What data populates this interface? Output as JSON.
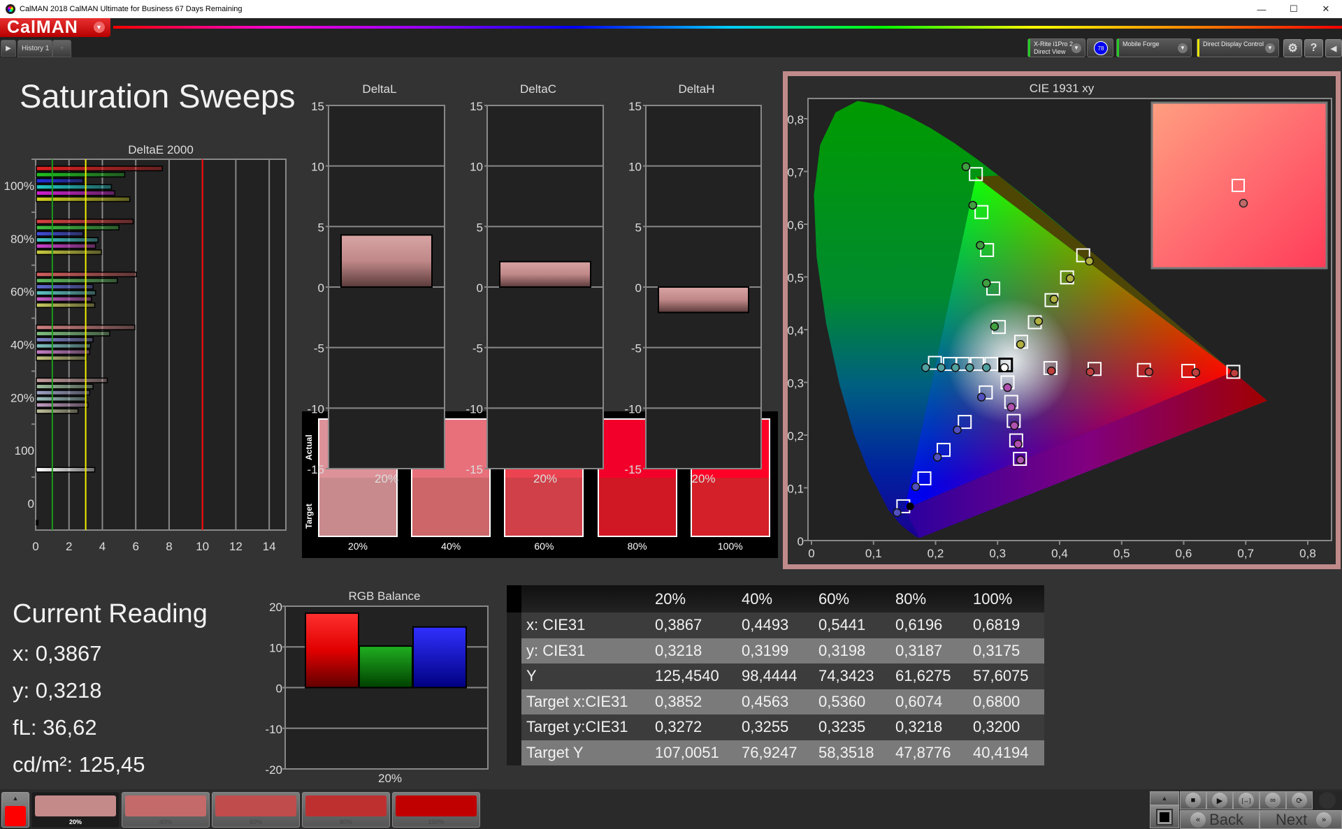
{
  "window": {
    "title": "CalMAN 2018 CalMAN Ultimate for Business 67 Days Remaining",
    "controls": [
      "minimize-icon",
      "maximize-icon",
      "close-icon"
    ]
  },
  "header": {
    "logo": "CalMAN",
    "tabs": [
      {
        "label": "History 1"
      }
    ],
    "add_tab": "+",
    "devices": [
      {
        "line1": "X-Rite i1Pro 2",
        "line2": "Direct View",
        "status_color": "#22cc22"
      },
      {
        "line1": "Mobile Forge",
        "line2": "",
        "status_color": "#22cc22"
      },
      {
        "line1": "Direct Display Control",
        "line2": "",
        "status_color": "#e6e600"
      }
    ],
    "meter_badge": "78",
    "buttons": [
      "gear-icon",
      "help-icon",
      "collapse-icon"
    ],
    "help_label": "?"
  },
  "page_title": "Saturation Sweeps",
  "swatches": {
    "actual_label": "Actual",
    "target_label": "Target",
    "items": [
      {
        "label": "20%",
        "actual": "#dd9299",
        "target": "#c98a8d"
      },
      {
        "label": "40%",
        "actual": "#e8707b",
        "target": "#cc6669"
      },
      {
        "label": "60%",
        "actual": "#ec4351",
        "target": "#cf4048"
      },
      {
        "label": "80%",
        "actual": "#f2002a",
        "target": "#d01825"
      },
      {
        "label": "100%",
        "actual": "#ff0026",
        "target": "#d42029"
      }
    ]
  },
  "current_reading": {
    "title": "Current Reading",
    "x": "x: 0,3867",
    "y": "y: 0,3218",
    "fl": "fL: 36,62",
    "cdm2": "cd/m²: 125,45"
  },
  "table": {
    "headers": [
      "",
      "20%",
      "40%",
      "60%",
      "80%",
      "100%"
    ],
    "rows": [
      [
        "x: CIE31",
        "0,3867",
        "0,4493",
        "0,5441",
        "0,6196",
        "0,6819"
      ],
      [
        "y: CIE31",
        "0,3218",
        "0,3199",
        "0,3198",
        "0,3187",
        "0,3175"
      ],
      [
        "Y",
        "125,4540",
        "98,4444",
        "74,3423",
        "61,6275",
        "57,6075"
      ],
      [
        "Target x:CIE31",
        "0,3852",
        "0,4563",
        "0,5360",
        "0,6074",
        "0,6800"
      ],
      [
        "Target y:CIE31",
        "0,3272",
        "0,3255",
        "0,3235",
        "0,3218",
        "0,3200"
      ],
      [
        "Target Y",
        "107,0051",
        "76,9247",
        "58,3518",
        "47,8776",
        "40,4194"
      ]
    ]
  },
  "bottom": {
    "current_color": "#ff0000",
    "sweep_buttons": [
      {
        "label": "20%",
        "color": "#c48a8a",
        "selected": true
      },
      {
        "label": "40%",
        "color": "#c46a6a"
      },
      {
        "label": "60%",
        "color": "#c04c4c"
      },
      {
        "label": "80%",
        "color": "#be3030"
      },
      {
        "label": "100%",
        "color": "#c00000"
      }
    ],
    "back": "Back",
    "next": "Next",
    "transport": [
      "stop-icon",
      "play-icon",
      "fit-icon",
      "loop-icon",
      "refresh-icon"
    ]
  },
  "chart_data": [
    {
      "id": "deltae",
      "type": "bar",
      "orientation": "horizontal",
      "title": "DeltaE 2000",
      "xlim": [
        0,
        15
      ],
      "xticks": [
        "0",
        "2",
        "4",
        "6",
        "8",
        "10",
        "12",
        "14"
      ],
      "thresholds": [
        {
          "value": 1,
          "color": "#1a9a1a"
        },
        {
          "value": 3,
          "color": "#f0f000"
        },
        {
          "value": 10,
          "color": "#ff0000"
        }
      ],
      "series_colors": {
        "red": "#e02020",
        "green": "#20c020",
        "blue": "#2030e0",
        "cyan": "#20c8c8",
        "magenta": "#d020d0",
        "yellow": "#d0d020",
        "white": "#ffffff",
        "black": "#000000"
      },
      "groups": [
        {
          "label": "100%",
          "saturation": 1.0,
          "bars": [
            {
              "s": "red",
              "v": 7.55
            },
            {
              "s": "green",
              "v": 5.3
            },
            {
              "s": "blue",
              "v": 2.8
            },
            {
              "s": "cyan",
              "v": 4.5
            },
            {
              "s": "magenta",
              "v": 4.7
            },
            {
              "s": "yellow",
              "v": 5.6
            }
          ]
        },
        {
          "label": "80%",
          "saturation": 0.8,
          "bars": [
            {
              "s": "red",
              "v": 5.8
            },
            {
              "s": "green",
              "v": 4.95
            },
            {
              "s": "blue",
              "v": 2.8
            },
            {
              "s": "cyan",
              "v": 3.7
            },
            {
              "s": "magenta",
              "v": 3.55
            },
            {
              "s": "yellow",
              "v": 3.9
            }
          ]
        },
        {
          "label": "60%",
          "saturation": 0.6,
          "bars": [
            {
              "s": "red",
              "v": 6.0
            },
            {
              "s": "green",
              "v": 4.85
            },
            {
              "s": "blue",
              "v": 3.4
            },
            {
              "s": "cyan",
              "v": 3.55
            },
            {
              "s": "magenta",
              "v": 3.3
            },
            {
              "s": "yellow",
              "v": 3.5
            }
          ]
        },
        {
          "label": "40%",
          "saturation": 0.4,
          "bars": [
            {
              "s": "red",
              "v": 5.9
            },
            {
              "s": "green",
              "v": 4.4
            },
            {
              "s": "blue",
              "v": 3.4
            },
            {
              "s": "cyan",
              "v": 3.25
            },
            {
              "s": "magenta",
              "v": 3.2
            },
            {
              "s": "yellow",
              "v": 3.0
            }
          ]
        },
        {
          "label": "20%",
          "saturation": 0.2,
          "bars": [
            {
              "s": "red",
              "v": 4.25
            },
            {
              "s": "green",
              "v": 3.4
            },
            {
              "s": "blue",
              "v": 3.2
            },
            {
              "s": "cyan",
              "v": 2.95
            },
            {
              "s": "magenta",
              "v": 3.1
            },
            {
              "s": "yellow",
              "v": 2.5
            }
          ]
        },
        {
          "label": "100",
          "saturation": 0,
          "bars": [
            {
              "s": "white",
              "v": 3.5
            }
          ]
        },
        {
          "label": "0",
          "saturation": 0,
          "bars": [
            {
              "s": "black",
              "v": 0.1
            }
          ]
        }
      ]
    },
    {
      "id": "deltal",
      "type": "bar",
      "title": "DeltaL",
      "categories": [
        "20%"
      ],
      "values": [
        4.3
      ],
      "ylim": [
        -15,
        15
      ],
      "yticks": [
        "15",
        "10",
        "5",
        "0",
        "-5",
        "-10",
        "-15"
      ]
    },
    {
      "id": "deltac",
      "type": "bar",
      "title": "DeltaC",
      "categories": [
        "20%"
      ],
      "values": [
        2.1
      ],
      "ylim": [
        -15,
        15
      ],
      "yticks": [
        "15",
        "10",
        "5",
        "0",
        "-5",
        "-10",
        "-15"
      ]
    },
    {
      "id": "deltah",
      "type": "bar",
      "title": "DeltaH",
      "categories": [
        "20%"
      ],
      "values": [
        -2.1
      ],
      "ylim": [
        -15,
        15
      ],
      "yticks": [
        "15",
        "10",
        "5",
        "0",
        "-5",
        "-10",
        "-15"
      ]
    },
    {
      "id": "rgb",
      "type": "bar",
      "title": "RGB Balance",
      "categories": [
        "20%"
      ],
      "ylim": [
        -20,
        20
      ],
      "yticks": [
        "20",
        "10",
        "0",
        "-10",
        "-20"
      ],
      "series": [
        {
          "color": "#ff0000",
          "values": [
            18.3
          ]
        },
        {
          "color": "#00a000",
          "values": [
            10.2
          ]
        },
        {
          "color": "#0000ff",
          "values": [
            14.9
          ]
        }
      ]
    },
    {
      "id": "cie",
      "type": "scatter",
      "title": "CIE 1931 xy",
      "xlim": [
        0,
        0.8
      ],
      "ylim": [
        0,
        0.8
      ],
      "xticks": [
        "0",
        "0,1",
        "0,2",
        "0,3",
        "0,4",
        "0,5",
        "0,6",
        "0,7",
        "0,8"
      ],
      "yticks": [
        "0",
        "0,1",
        "0,2",
        "0,3",
        "0,4",
        "0,5",
        "0,6",
        "0,7",
        "0,8"
      ],
      "gamut": {
        "red": [
          0.68,
          0.32
        ],
        "green": [
          0.265,
          0.69
        ],
        "blue": [
          0.15,
          0.06
        ]
      },
      "white": {
        "target": [
          0.313,
          0.333
        ],
        "measured": [
          0.311,
          0.328
        ]
      },
      "sweeps": [
        {
          "color": "red",
          "target": [
            [
              0.3852,
              0.3272
            ],
            [
              0.4563,
              0.3255
            ],
            [
              0.536,
              0.3235
            ],
            [
              0.6074,
              0.3218
            ],
            [
              0.68,
              0.32
            ]
          ],
          "measured": [
            [
              0.3867,
              0.3218
            ],
            [
              0.4493,
              0.3199
            ],
            [
              0.5441,
              0.3198
            ],
            [
              0.6196,
              0.3187
            ],
            [
              0.6819,
              0.3175
            ]
          ]
        },
        {
          "color": "green",
          "target": [
            [
              0.302,
              0.405
            ],
            [
              0.293,
              0.478
            ],
            [
              0.283,
              0.551
            ],
            [
              0.274,
              0.623
            ],
            [
              0.265,
              0.695
            ]
          ],
          "measured": [
            [
              0.295,
              0.406
            ],
            [
              0.282,
              0.488
            ],
            [
              0.272,
              0.56
            ],
            [
              0.26,
              0.636
            ],
            [
              0.249,
              0.709
            ]
          ]
        },
        {
          "color": "blue",
          "target": [
            [
              0.281,
              0.281
            ],
            [
              0.247,
              0.225
            ],
            [
              0.213,
              0.172
            ],
            [
              0.182,
              0.118
            ],
            [
              0.148,
              0.065
            ]
          ],
          "measured": [
            [
              0.274,
              0.272
            ],
            [
              0.235,
              0.21
            ],
            [
              0.203,
              0.158
            ],
            [
              0.168,
              0.102
            ],
            [
              0.138,
              0.053
            ]
          ]
        },
        {
          "color": "cyan",
          "target": [
            [
              0.29,
              0.335
            ],
            [
              0.267,
              0.335
            ],
            [
              0.244,
              0.335
            ],
            [
              0.223,
              0.335
            ],
            [
              0.199,
              0.337
            ]
          ],
          "measured": [
            [
              0.282,
              0.328
            ],
            [
              0.255,
              0.328
            ],
            [
              0.232,
              0.328
            ],
            [
              0.209,
              0.328
            ],
            [
              0.184,
              0.328
            ]
          ]
        },
        {
          "color": "magenta",
          "target": [
            [
              0.316,
              0.3
            ],
            [
              0.322,
              0.263
            ],
            [
              0.326,
              0.227
            ],
            [
              0.33,
              0.19
            ],
            [
              0.336,
              0.155
            ]
          ],
          "measured": [
            [
              0.316,
              0.29
            ],
            [
              0.322,
              0.253
            ],
            [
              0.327,
              0.218
            ],
            [
              0.333,
              0.183
            ],
            [
              0.337,
              0.153
            ]
          ]
        },
        {
          "color": "yellow",
          "target": [
            [
              0.338,
              0.377
            ],
            [
              0.36,
              0.414
            ],
            [
              0.387,
              0.456
            ],
            [
              0.412,
              0.499
            ],
            [
              0.438,
              0.541
            ]
          ],
          "measured": [
            [
              0.337,
              0.372
            ],
            [
              0.366,
              0.416
            ],
            [
              0.391,
              0.458
            ],
            [
              0.417,
              0.497
            ],
            [
              0.448,
              0.53
            ]
          ]
        }
      ],
      "black_point": [
        0.159,
        0.065
      ],
      "inset": {
        "view": "zoom on current point"
      }
    }
  ]
}
